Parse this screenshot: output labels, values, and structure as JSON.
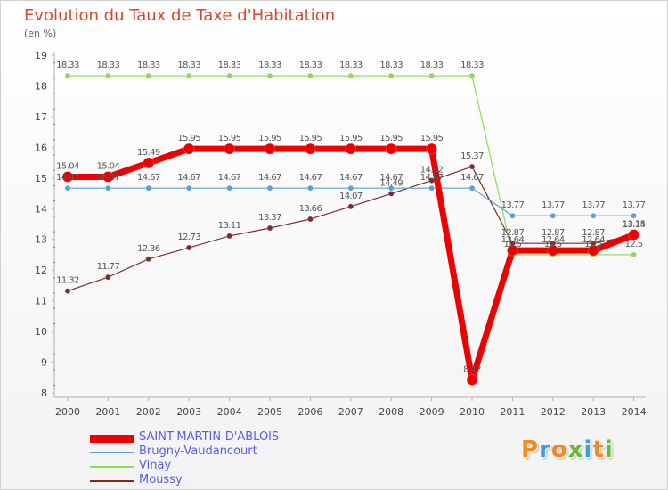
{
  "chart_data": {
    "type": "line",
    "title": "Evolution du Taux de Taxe d'Habitation",
    "subtitle": "(en %)",
    "xlabel": "",
    "ylabel": "",
    "categories": [
      "2000",
      "2001",
      "2002",
      "2003",
      "2004",
      "2005",
      "2006",
      "2007",
      "2008",
      "2009",
      "2010",
      "2011",
      "2012",
      "2013",
      "2014"
    ],
    "ylim": [
      8,
      19
    ],
    "yticks": [
      "8",
      "9",
      "10",
      "11",
      "12",
      "13",
      "14",
      "15",
      "16",
      "17",
      "18",
      "19"
    ],
    "grid": false,
    "legend_position": "bottom-left",
    "series": [
      {
        "name": "Moussy",
        "color": "#7a2d2d",
        "values": [
          11.32,
          11.77,
          12.36,
          12.73,
          13.11,
          13.37,
          13.66,
          14.07,
          14.49,
          14.92,
          15.37,
          12.87,
          12.87,
          12.87,
          13.14
        ],
        "labels": [
          "11.32",
          "11.77",
          "12.36",
          "12.73",
          "13.11",
          "13.37",
          "13.66",
          "14.07",
          "14.49",
          "14.92",
          "15.37",
          "12.87",
          "12.87",
          "12.87",
          "13.14"
        ]
      },
      {
        "name": "Vinay",
        "color": "#88dd55",
        "values": [
          18.33,
          18.33,
          18.33,
          18.33,
          18.33,
          18.33,
          18.33,
          18.33,
          18.33,
          18.33,
          18.33,
          12.5,
          12.5,
          12.5,
          12.5
        ],
        "labels": [
          "18.33",
          "18.33",
          "18.33",
          "18.33",
          "18.33",
          "18.33",
          "18.33",
          "18.33",
          "18.33",
          "18.33",
          "18.33",
          "12.5",
          "12.5",
          "12.5",
          "12.5"
        ]
      },
      {
        "name": "Brugny-Vaudancourt",
        "color": "#5c9fd6",
        "values": [
          14.67,
          14.67,
          14.67,
          14.67,
          14.67,
          14.67,
          14.67,
          14.67,
          14.67,
          14.67,
          14.67,
          13.77,
          13.77,
          13.77,
          13.77
        ],
        "labels": [
          "14.67",
          "14.67",
          "14.67",
          "14.67",
          "14.67",
          "14.67",
          "14.67",
          "14.67",
          "14.67",
          "14.67",
          "14.67",
          "13.77",
          "13.77",
          "13.77",
          "13.77"
        ]
      },
      {
        "name": "SAINT-MARTIN-D'ABLOIS",
        "color": "#ee0000",
        "values": [
          15.04,
          15.04,
          15.49,
          15.95,
          15.95,
          15.95,
          15.95,
          15.95,
          15.95,
          15.95,
          8.42,
          12.64,
          12.64,
          12.64,
          13.15
        ],
        "labels": [
          "15.04",
          "15.04",
          "15.49",
          "15.95",
          "15.95",
          "15.95",
          "15.95",
          "15.95",
          "15.95",
          "15.95",
          "8.42",
          "12.64",
          "12.64",
          "12.64",
          "13.15"
        ]
      }
    ],
    "legend_order": [
      "SAINT-MARTIN-D'ABLOIS",
      "Brugny-Vaudancourt",
      "Vinay",
      "Moussy"
    ]
  },
  "logo": {
    "text": "Proxiti",
    "colors": [
      "#f08a24",
      "#3a9ee0",
      "#f08a24",
      "#6ab934",
      "#3a9ee0",
      "#f08a24",
      "#6ab934"
    ]
  }
}
